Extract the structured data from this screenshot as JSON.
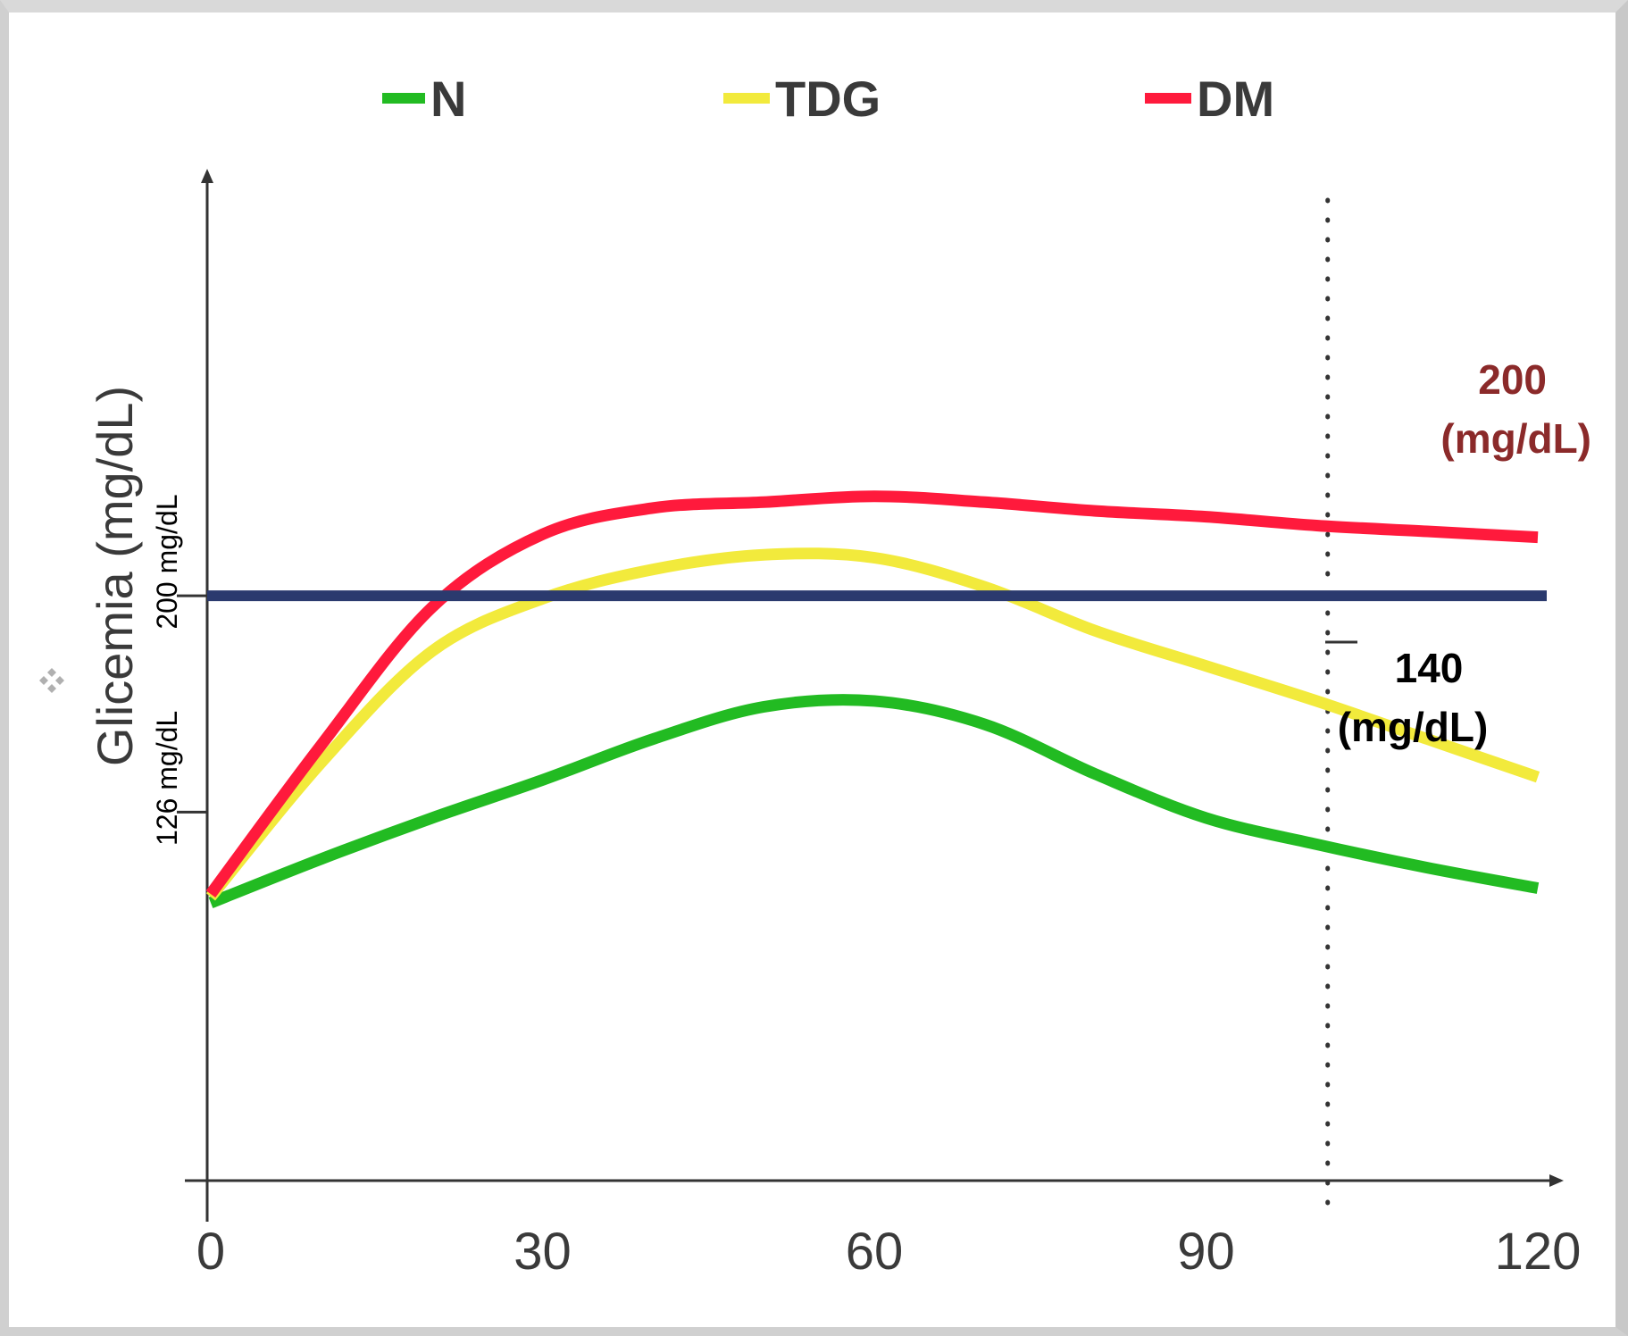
{
  "chart_data": {
    "type": "line",
    "title": "",
    "xlabel": "",
    "ylabel": "Glicemia (mg/dL)",
    "x_ticks": [
      "0",
      "30",
      "60",
      "90",
      "120"
    ],
    "xlim": [
      0,
      120
    ],
    "ylim": [
      0,
      300
    ],
    "grid": false,
    "legend_position": "top",
    "series": [
      {
        "name": "N",
        "color": "#22bb22",
        "x": [
          0,
          10,
          20,
          30,
          40,
          50,
          60,
          70,
          80,
          90,
          100,
          110,
          120
        ],
        "y": [
          95,
          110,
          124,
          137,
          151,
          162,
          164,
          156,
          139,
          124,
          115,
          107,
          100
        ]
      },
      {
        "name": "TDG",
        "color": "#f2ea3c",
        "x": [
          0,
          10,
          20,
          30,
          40,
          50,
          60,
          70,
          80,
          90,
          100,
          110,
          120
        ],
        "y": [
          97,
          143,
          181,
          199,
          209,
          214,
          213,
          203,
          188,
          176,
          164,
          151,
          138
        ]
      },
      {
        "name": "DM",
        "color": "#ff1a3c",
        "x": [
          0,
          10,
          20,
          30,
          40,
          50,
          60,
          70,
          80,
          90,
          100,
          110,
          120
        ],
        "y": [
          98,
          149,
          196,
          221,
          230,
          232,
          234,
          232,
          229,
          227,
          224,
          222,
          220
        ]
      }
    ],
    "reference_lines": [
      {
        "axis": "y",
        "value": 200,
        "color": "#2b3a6e",
        "style": "solid"
      },
      {
        "axis": "x",
        "value": 101,
        "color": "#333333",
        "style": "dotted"
      }
    ],
    "y_marks": [
      {
        "value": 200,
        "label": "200 mg/dL"
      },
      {
        "value": 126,
        "label": "126 mg/dL"
      }
    ],
    "annotations": [
      {
        "text_lines": [
          "200",
          "(mg/dL)"
        ],
        "color": "#8b2a2a"
      },
      {
        "text_lines": [
          "140",
          "(mg/dL)"
        ],
        "color": "#000000"
      }
    ]
  },
  "decor": {
    "bullet_icon": "diamond-cluster-icon"
  }
}
